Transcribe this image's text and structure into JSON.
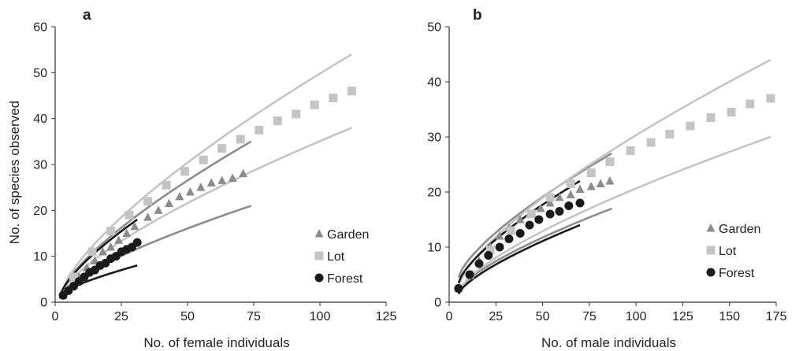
{
  "chart_data": [
    {
      "type": "scatter",
      "panel_label": "a",
      "xlabel": "No. of female individuals",
      "ylabel": "No. of species observed",
      "xlim": [
        0,
        125
      ],
      "ylim": [
        0,
        60
      ],
      "xticks": [
        0,
        25,
        50,
        75,
        100,
        125
      ],
      "yticks": [
        0,
        10,
        20,
        30,
        40,
        50,
        60
      ],
      "legend_position": "lower-right",
      "legend": [
        "Garden",
        "Lot",
        "Forest"
      ],
      "series": [
        {
          "name": "Garden",
          "marker": "triangle",
          "color": "#8c8c8c",
          "x": [
            3,
            6,
            9,
            12,
            15,
            18,
            21,
            24,
            27,
            30,
            35,
            39,
            43,
            47,
            51,
            55,
            59,
            63,
            67,
            71
          ],
          "y": [
            1.5,
            3.5,
            5.5,
            7.5,
            9,
            11,
            12,
            13.5,
            15,
            16.5,
            18.5,
            20,
            21.5,
            23,
            24,
            25,
            26,
            26.5,
            27,
            28
          ]
        },
        {
          "name": "Lot",
          "marker": "square",
          "color": "#c4c4c4",
          "x": [
            7,
            14,
            21,
            28,
            35,
            42,
            49,
            56,
            63,
            70,
            77,
            84,
            91,
            98,
            105,
            112
          ],
          "y": [
            5.5,
            11,
            15.5,
            19,
            22,
            25.5,
            28.5,
            31,
            33.5,
            35.5,
            37.5,
            39.5,
            41,
            43,
            44.5,
            46
          ]
        },
        {
          "name": "Forest",
          "marker": "circle",
          "color": "#1a1a1a",
          "x": [
            3,
            5,
            7,
            9,
            11,
            13,
            15,
            17,
            19,
            21,
            23,
            25,
            27,
            29,
            31
          ],
          "y": [
            1.5,
            2.5,
            3.5,
            4.5,
            5.5,
            6.5,
            7,
            8,
            8.5,
            9.5,
            10,
            11,
            11.5,
            12,
            13
          ]
        }
      ],
      "confidence_curves": [
        {
          "series": "Garden",
          "bound": "upper",
          "color": "#8c8c8c",
          "x": [
            2,
            74
          ],
          "y": [
            1.5,
            35
          ]
        },
        {
          "series": "Garden",
          "bound": "lower",
          "color": "#8c8c8c",
          "x": [
            2,
            74
          ],
          "y": [
            1.5,
            21
          ]
        },
        {
          "series": "Lot",
          "bound": "upper",
          "color": "#c4c4c4",
          "x": [
            2,
            112
          ],
          "y": [
            1.5,
            54
          ]
        },
        {
          "series": "Lot",
          "bound": "lower",
          "color": "#c4c4c4",
          "x": [
            2,
            112
          ],
          "y": [
            1.5,
            38
          ]
        },
        {
          "series": "Forest",
          "bound": "upper",
          "color": "#1a1a1a",
          "x": [
            2,
            31
          ],
          "y": [
            1.5,
            18
          ]
        },
        {
          "series": "Forest",
          "bound": "lower",
          "color": "#1a1a1a",
          "x": [
            2,
            31
          ],
          "y": [
            1.5,
            8
          ]
        }
      ]
    },
    {
      "type": "scatter",
      "panel_label": "b",
      "xlabel": "No. of male individuals",
      "ylabel": "",
      "xlim": [
        0,
        175
      ],
      "ylim": [
        0,
        50
      ],
      "xticks": [
        0,
        25,
        50,
        75,
        100,
        125,
        150,
        175
      ],
      "yticks": [
        0,
        10,
        20,
        30,
        40,
        50
      ],
      "legend_position": "lower-right",
      "legend": [
        "Garden",
        "Lot",
        "Forest"
      ],
      "series": [
        {
          "name": "Garden",
          "marker": "triangle",
          "color": "#8c8c8c",
          "x": [
            5,
            11,
            16,
            22,
            27,
            32,
            38,
            43,
            49,
            54,
            59,
            65,
            70,
            76,
            81,
            86
          ],
          "y": [
            2.5,
            5,
            7.5,
            10,
            12,
            13.5,
            15,
            16,
            17,
            18,
            19,
            19.5,
            20.5,
            21,
            21.5,
            22
          ]
        },
        {
          "name": "Lot",
          "marker": "square",
          "color": "#c4c4c4",
          "x": [
            11,
            22,
            33,
            44,
            54,
            65,
            76,
            86,
            97,
            108,
            118,
            129,
            140,
            151,
            161,
            172
          ],
          "y": [
            5,
            9.5,
            13,
            16,
            19,
            21.5,
            23.5,
            25.5,
            27.5,
            29,
            30.5,
            32,
            33.5,
            34.5,
            36,
            37
          ]
        },
        {
          "name": "Forest",
          "marker": "circle",
          "color": "#1a1a1a",
          "x": [
            5,
            11,
            16,
            21,
            27,
            32,
            38,
            43,
            48,
            54,
            59,
            64,
            70
          ],
          "y": [
            2.5,
            5,
            7,
            8.5,
            10,
            11.5,
            12.5,
            14,
            15,
            16,
            16.5,
            17.5,
            18
          ]
        }
      ],
      "confidence_curves": [
        {
          "series": "Garden",
          "bound": "upper",
          "color": "#8c8c8c",
          "x": [
            5,
            87
          ],
          "y": [
            4.5,
            27
          ]
        },
        {
          "series": "Garden",
          "bound": "lower",
          "color": "#8c8c8c",
          "x": [
            5,
            87
          ],
          "y": [
            2,
            17
          ]
        },
        {
          "series": "Lot",
          "bound": "upper",
          "color": "#c4c4c4",
          "x": [
            5,
            172
          ],
          "y": [
            3,
            44
          ]
        },
        {
          "series": "Lot",
          "bound": "lower",
          "color": "#c4c4c4",
          "x": [
            5,
            172
          ],
          "y": [
            2,
            30
          ]
        },
        {
          "series": "Forest",
          "bound": "upper",
          "color": "#1a1a1a",
          "x": [
            5,
            70
          ],
          "y": [
            3.5,
            22
          ]
        },
        {
          "series": "Forest",
          "bound": "lower",
          "color": "#1a1a1a",
          "x": [
            5,
            70
          ],
          "y": [
            1.5,
            14
          ]
        }
      ]
    }
  ]
}
